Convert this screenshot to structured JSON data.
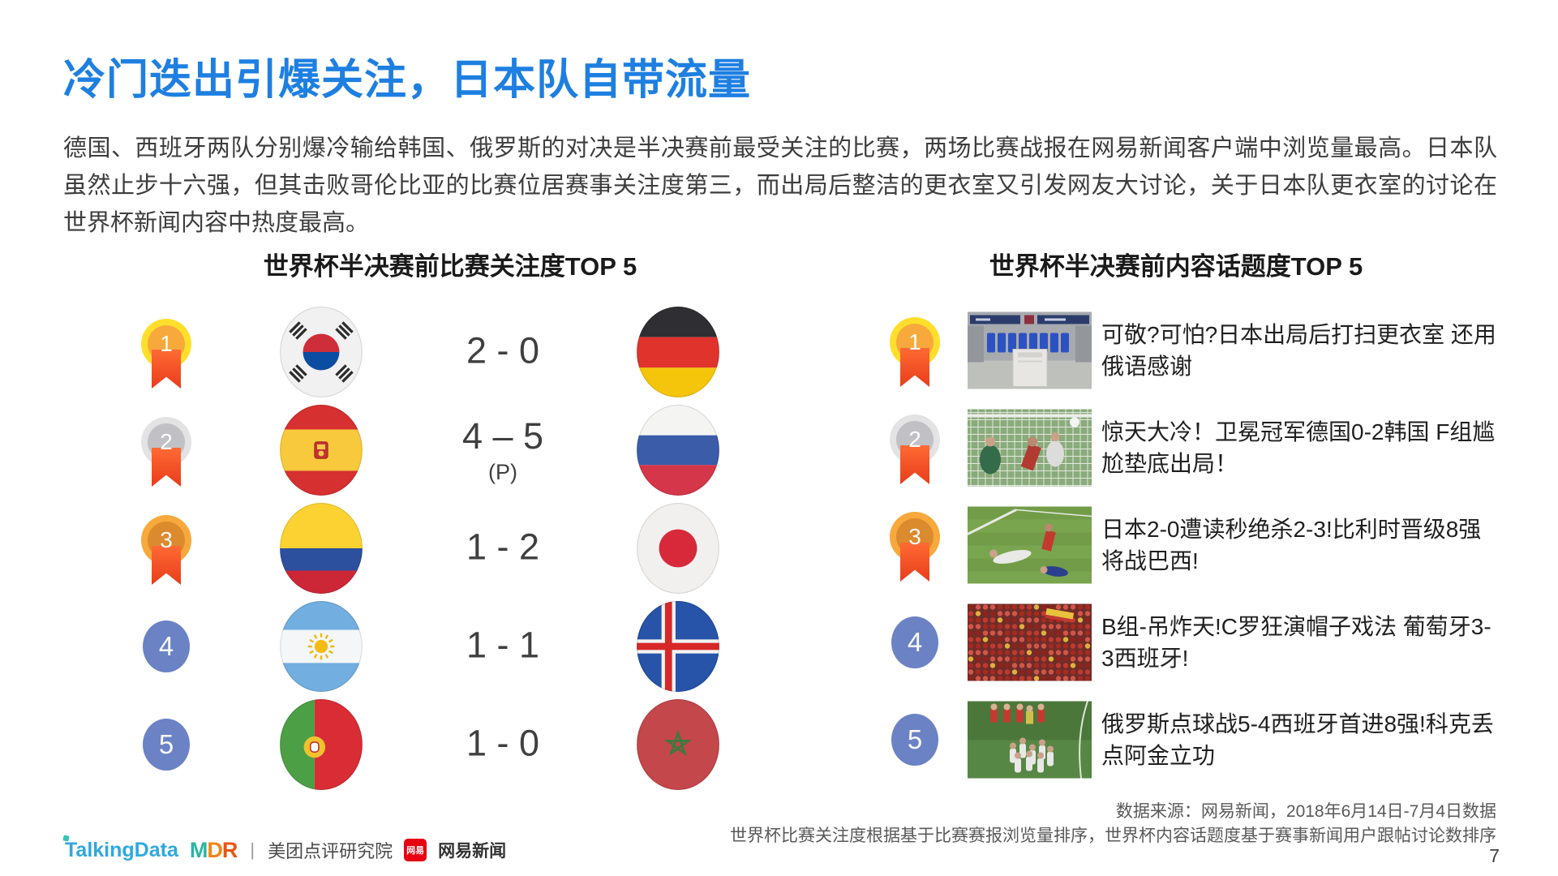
{
  "slide": {
    "title": "冷门迭出引爆关注，日本队自带流量",
    "intro": "德国、西班牙两队分别爆冷输给韩国、俄罗斯的对决是半决赛前最受关注的比赛，两场比赛战报在网易新闻客户端中浏览量最高。日本队虽然止步十六强，但其击败哥伦比亚的比赛位居赛事关注度第三，而出局后整洁的更衣室又引发网友大讨论，关于日本队更衣室的讨论在世界杯新闻内容中热度最高。",
    "page_number": "7"
  },
  "left_panel": {
    "title": "世界杯半决赛前比赛关注度TOP 5",
    "rows": [
      {
        "rank": "1",
        "team1": "south-korea",
        "score": "2 - 0",
        "score_note": "",
        "team2": "germany"
      },
      {
        "rank": "2",
        "team1": "spain",
        "score": "4 – 5",
        "score_note": "(P)",
        "team2": "russia"
      },
      {
        "rank": "3",
        "team1": "colombia",
        "score": "1 - 2",
        "score_note": "",
        "team2": "japan"
      },
      {
        "rank": "4",
        "team1": "argentina",
        "score": "1 - 1",
        "score_note": "",
        "team2": "iceland"
      },
      {
        "rank": "5",
        "team1": "portugal",
        "score": "1 - 0",
        "score_note": "",
        "team2": "morocco"
      }
    ]
  },
  "right_panel": {
    "title": "世界杯半决赛前内容话题度TOP 5",
    "items": [
      {
        "rank": "1",
        "thumbnail": "japan-locker-room",
        "headline": "可敬?可怕?日本出局后打扫更衣室 还用俄语感谢"
      },
      {
        "rank": "2",
        "thumbnail": "germany-korea-goal",
        "headline": "惊天大冷！卫冕冠军德国0-2韩国 F组尴尬垫底出局！"
      },
      {
        "rank": "3",
        "thumbnail": "japan-belgium-pitch",
        "headline": "日本2-0遭读秒绝杀2-3!比利时晋级8强将战巴西!"
      },
      {
        "rank": "4",
        "thumbnail": "portugal-spain-fans",
        "headline": "B组-吊炸天!C罗狂演帽子戏法 葡萄牙3-3西班牙!"
      },
      {
        "rank": "5",
        "thumbnail": "russia-spain-celebration",
        "headline": "俄罗斯点球战5-4西班牙首进8强!科克丢点阿金立功"
      }
    ]
  },
  "footer": {
    "source_line1": "数据来源：网易新闻，2018年6月14日-7月4日数据",
    "source_line2": "世界杯比赛关注度根据基于比赛赛报浏览量排序，世界杯内容话题度基于赛事新闻用户跟帖讨论数排序",
    "logos": {
      "talkingdata": "TalkingData",
      "mdr_m": "M",
      "mdr_d": "D",
      "mdr_r": "R",
      "separator": "|",
      "meituan": "美团点评研究院",
      "netease_badge": "网易",
      "netease": "网易新闻"
    }
  },
  "colors": {
    "accent_blue": "#1E7FE1",
    "text_dark": "#3D3D3D",
    "medal_gold": "#F7A93C",
    "medal_gold_ring": "#FFDF2B",
    "medal_silver": "#C1C1C5",
    "medal_silver_ring": "#E3E3E3",
    "medal_bronze": "#DB8A2E",
    "medal_bronze_ring": "#F7A93C",
    "ribbon_red": "#F1492A",
    "rank_blue": "#6B82C4",
    "talkingdata_blue": "#2FA8DF",
    "netease_red": "#E60012"
  }
}
